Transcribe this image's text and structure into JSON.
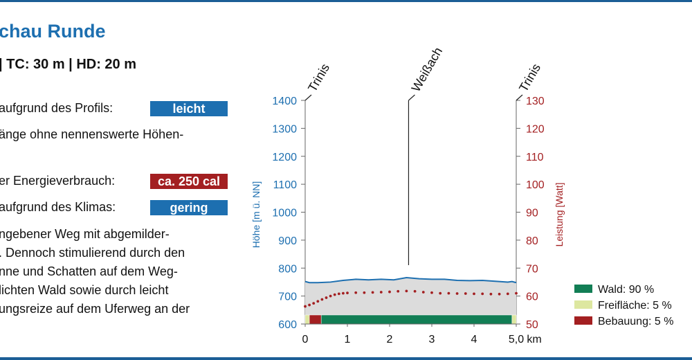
{
  "title": "chau Runde",
  "subtitle": "| TC: 30 m | HD: 20 m",
  "info": {
    "profile_label": "aufgrund des Profils:",
    "profile_badge": "leicht",
    "profile_desc": "änge ohne nennenswerte Höhen-",
    "energy_label": "er Energieverbrauch:",
    "energy_badge": "ca. 250 cal",
    "climate_label": "aufgrund des Klimas:",
    "climate_badge": "gering",
    "description": [
      "ngebener Weg mit abgemilder-",
      ". Dennoch stimulierend durch den",
      "nne und Schatten auf dem Weg-",
      "lichten Wald sowie durch leicht",
      "ungsreize auf dem Uferweg an der"
    ]
  },
  "colors": {
    "accent_blue": "#1d6fb0",
    "accent_red": "#a31f21",
    "forest": "#127e55",
    "open_space": "#dde7a0",
    "built_up": "#a31f21",
    "profile_line": "#1d6fb0",
    "profile_fill": "#dcdcdc"
  },
  "chart_data": {
    "type": "line",
    "x_unit": "km",
    "x_ticks": [
      "0",
      "1",
      "2",
      "3",
      "4",
      "5,0"
    ],
    "xlim": [
      0,
      5.0
    ],
    "ylabel": "Höhe [m ü. NN]",
    "ylim": [
      600,
      1400
    ],
    "y_ticks": [
      600,
      700,
      800,
      900,
      1000,
      1100,
      1200,
      1300,
      1400
    ],
    "y2label": "Leistung [Watt]",
    "y2lim": [
      50,
      130
    ],
    "y2_ticks": [
      50,
      60,
      70,
      80,
      90,
      100,
      110,
      120,
      130
    ],
    "waypoints": [
      {
        "name": "Trinis",
        "x": 0
      },
      {
        "name": "Weißach",
        "x": 2.45
      },
      {
        "name": "Trinis",
        "x": 5.0
      }
    ],
    "series": [
      {
        "axis": "left",
        "style": "line-filled",
        "x": [
          0,
          0.1,
          0.3,
          0.6,
          0.9,
          1.2,
          1.5,
          1.8,
          2.1,
          2.4,
          2.7,
          3.0,
          3.3,
          3.6,
          3.9,
          4.2,
          4.5,
          4.8,
          4.9,
          5.0
        ],
        "values": [
          752,
          748,
          748,
          750,
          756,
          760,
          758,
          760,
          758,
          766,
          762,
          760,
          760,
          756,
          755,
          756,
          753,
          750,
          752,
          748
        ]
      },
      {
        "axis": "right",
        "style": "dotted",
        "x": [
          0,
          0.1,
          0.2,
          0.3,
          0.4,
          0.5,
          0.6,
          0.7,
          0.8,
          0.9,
          1.0,
          1.2,
          1.4,
          1.6,
          1.8,
          2.0,
          2.2,
          2.4,
          2.6,
          2.8,
          3.0,
          3.2,
          3.4,
          3.6,
          3.8,
          4.0,
          4.2,
          4.4,
          4.6,
          4.8,
          5.0
        ],
        "values": [
          56.3,
          56.8,
          57.4,
          58.1,
          58.8,
          59.4,
          60.0,
          60.5,
          60.8,
          61.0,
          61.1,
          61.2,
          61.2,
          61.3,
          61.4,
          61.5,
          61.7,
          61.8,
          61.7,
          61.4,
          61.2,
          61.0,
          61.0,
          60.9,
          60.9,
          60.8,
          60.8,
          60.7,
          60.7,
          60.8,
          61.0
        ]
      }
    ],
    "surface_bar": [
      {
        "type": "open",
        "from": 0,
        "to": 0.1
      },
      {
        "type": "built",
        "from": 0.1,
        "to": 0.38
      },
      {
        "type": "forest",
        "from": 0.38,
        "to": 4.9
      },
      {
        "type": "open",
        "from": 4.9,
        "to": 5.0
      }
    ],
    "legend": [
      {
        "label": "Wald: 90 %",
        "type": "forest"
      },
      {
        "label": "Freifläche: 5 %",
        "type": "open"
      },
      {
        "label": "Bebauung: 5 %",
        "type": "built"
      }
    ],
    "legend_position": "right"
  }
}
